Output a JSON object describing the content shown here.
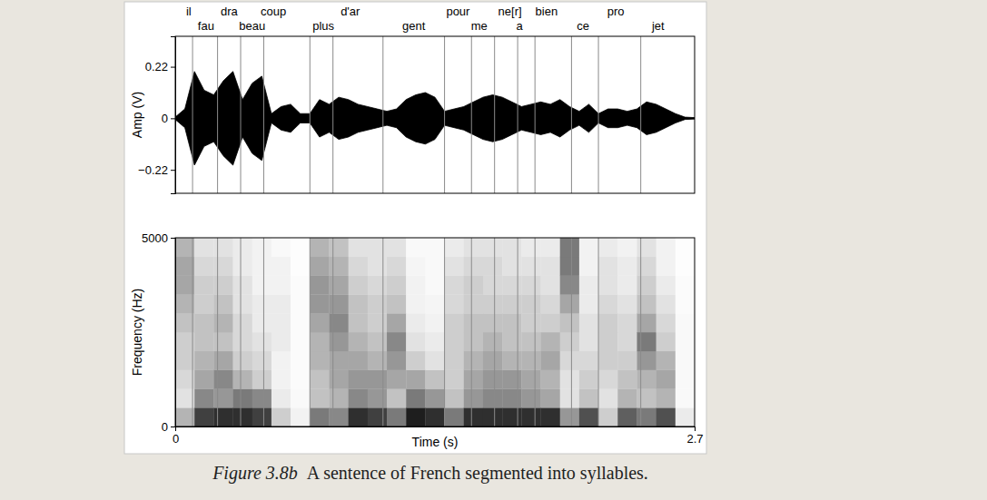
{
  "chart_data": [
    {
      "type": "area",
      "ylabel": "Amp (V)",
      "color": "#000000",
      "x": [
        0,
        0.05,
        0.1,
        0.15,
        0.2,
        0.25,
        0.3,
        0.35,
        0.4,
        0.45,
        0.5,
        0.55,
        0.6,
        0.65,
        0.7,
        0.75,
        0.8,
        0.85,
        0.9,
        0.95,
        1,
        1.05,
        1.1,
        1.15,
        1.2,
        1.25,
        1.3,
        1.35,
        1.4,
        1.45,
        1.5,
        1.55,
        1.6,
        1.65,
        1.7,
        1.75,
        1.8,
        1.85,
        1.9,
        1.95,
        2,
        2.05,
        2.1,
        2.15,
        2.2,
        2.25,
        2.3,
        2.35,
        2.4,
        2.45,
        2.5,
        2.55,
        2.6,
        2.65,
        2.7
      ],
      "values": [
        0.005,
        0.04,
        0.2,
        0.12,
        0.1,
        0.16,
        0.2,
        0.08,
        0.15,
        0.18,
        0.02,
        0.05,
        0.06,
        0.02,
        0.02,
        0.08,
        0.06,
        0.09,
        0.08,
        0.06,
        0.05,
        0.04,
        0.03,
        0.04,
        0.08,
        0.1,
        0.11,
        0.09,
        0.03,
        0.04,
        0.05,
        0.07,
        0.09,
        0.1,
        0.09,
        0.07,
        0.05,
        0.06,
        0.07,
        0.06,
        0.08,
        0.05,
        0.03,
        0.06,
        0.02,
        0.04,
        0.04,
        0.03,
        0.04,
        0.07,
        0.06,
        0.04,
        0.02,
        0.005,
        0.003
      ],
      "xlim": [
        0,
        2.7
      ],
      "ylim": [
        -0.32,
        0.35
      ],
      "yticks": [
        0.22,
        0,
        {
          "value": -0.22,
          "label": "−0.22"
        }
      ],
      "tick_labels": "y",
      "syllables": [
        {
          "label": "il",
          "time": 0.07
        },
        {
          "label": "fau",
          "time": 0.16
        },
        {
          "label": "dra",
          "time": 0.28
        },
        {
          "label": "beau",
          "time": 0.4
        },
        {
          "label": "coup",
          "time": 0.51
        },
        {
          "label": "plus",
          "time": 0.77
        },
        {
          "label": "d'ar",
          "time": 0.91
        },
        {
          "label": "gent",
          "time": 1.24
        },
        {
          "label": "pour",
          "time": 1.47
        },
        {
          "label": "me",
          "time": 1.58
        },
        {
          "label": "ne[r]",
          "time": 1.74
        },
        {
          "label": "a",
          "time": 1.79
        },
        {
          "label": "bien",
          "time": 1.93
        },
        {
          "label": "ce",
          "time": 2.12
        },
        {
          "label": "pro",
          "time": 2.29
        },
        {
          "label": "jet",
          "time": 2.51
        }
      ],
      "boundaries": [
        0.09,
        0.22,
        0.34,
        0.46,
        0.7,
        0.82,
        1.08,
        1.4,
        1.54,
        1.66,
        1.78,
        1.87,
        2.06,
        2.2,
        2.42
      ]
    },
    {
      "type": "heatmap",
      "xlabel": "Time (s)",
      "ylabel": "Frequency (Hz)",
      "x_bins": [
        0,
        0.1,
        0.2,
        0.3,
        0.4,
        0.5,
        0.6,
        0.7,
        0.8,
        0.9,
        1,
        1.1,
        1.2,
        1.3,
        1.4,
        1.5,
        1.6,
        1.7,
        1.8,
        1.9,
        2,
        2.1,
        2.2,
        2.3,
        2.4,
        2.5,
        2.6,
        2.7
      ],
      "y_bins": [
        0,
        500,
        1000,
        1500,
        2000,
        2500,
        3000,
        3500,
        4000,
        4500,
        5000
      ],
      "cells": [
        [
          0.4,
          0.2,
          0.25,
          0.3,
          0.3,
          0.35,
          0.4,
          0.45,
          0.45,
          0.4
        ],
        [
          0.8,
          0.55,
          0.45,
          0.4,
          0.35,
          0.35,
          0.3,
          0.3,
          0.25,
          0.2
        ],
        [
          0.85,
          0.5,
          0.55,
          0.45,
          0.35,
          0.4,
          0.35,
          0.3,
          0.25,
          0.2
        ],
        [
          0.85,
          0.6,
          0.4,
          0.3,
          0.25,
          0.25,
          0.2,
          0.2,
          0.15,
          0.15
        ],
        [
          0.8,
          0.55,
          0.3,
          0.25,
          0.2,
          0.15,
          0.15,
          0.1,
          0.1,
          0.1
        ],
        [
          0.3,
          0.15,
          0.1,
          0.1,
          0.15,
          0.15,
          0.15,
          0.1,
          0.1,
          0.05
        ],
        [
          0.1,
          0.05,
          0.03,
          0.03,
          0.03,
          0.03,
          0.03,
          0.03,
          0.02,
          0.02
        ],
        [
          0.6,
          0.35,
          0.35,
          0.4,
          0.4,
          0.45,
          0.5,
          0.5,
          0.45,
          0.4
        ],
        [
          0.55,
          0.4,
          0.45,
          0.45,
          0.5,
          0.55,
          0.5,
          0.45,
          0.4,
          0.35
        ],
        [
          0.85,
          0.55,
          0.5,
          0.45,
          0.4,
          0.35,
          0.35,
          0.3,
          0.25,
          0.2
        ],
        [
          0.8,
          0.5,
          0.5,
          0.4,
          0.35,
          0.3,
          0.3,
          0.25,
          0.2,
          0.2
        ],
        [
          0.6,
          0.35,
          0.45,
          0.5,
          0.55,
          0.45,
          0.35,
          0.3,
          0.25,
          0.2
        ],
        [
          0.9,
          0.6,
          0.45,
          0.3,
          0.2,
          0.15,
          0.1,
          0.1,
          0.08,
          0.05
        ],
        [
          0.85,
          0.5,
          0.35,
          0.2,
          0.15,
          0.1,
          0.08,
          0.05,
          0.05,
          0.05
        ],
        [
          0.6,
          0.35,
          0.3,
          0.3,
          0.3,
          0.3,
          0.25,
          0.25,
          0.2,
          0.15
        ],
        [
          0.85,
          0.5,
          0.45,
          0.4,
          0.35,
          0.35,
          0.3,
          0.3,
          0.25,
          0.2
        ],
        [
          0.85,
          0.55,
          0.5,
          0.45,
          0.4,
          0.35,
          0.3,
          0.25,
          0.25,
          0.2
        ],
        [
          0.85,
          0.55,
          0.5,
          0.4,
          0.35,
          0.35,
          0.3,
          0.25,
          0.2,
          0.2
        ],
        [
          0.85,
          0.5,
          0.45,
          0.4,
          0.35,
          0.3,
          0.3,
          0.25,
          0.2,
          0.15
        ],
        [
          0.85,
          0.45,
          0.4,
          0.45,
          0.4,
          0.3,
          0.25,
          0.2,
          0.2,
          0.15
        ],
        [
          0.5,
          0.2,
          0.2,
          0.25,
          0.3,
          0.35,
          0.45,
          0.55,
          0.6,
          0.6
        ],
        [
          0.75,
          0.35,
          0.3,
          0.25,
          0.2,
          0.2,
          0.15,
          0.15,
          0.1,
          0.1
        ],
        [
          0.3,
          0.2,
          0.25,
          0.3,
          0.3,
          0.3,
          0.25,
          0.2,
          0.2,
          0.15
        ],
        [
          0.7,
          0.4,
          0.35,
          0.3,
          0.25,
          0.25,
          0.2,
          0.15,
          0.15,
          0.1
        ],
        [
          0.6,
          0.35,
          0.4,
          0.5,
          0.6,
          0.45,
          0.35,
          0.3,
          0.25,
          0.2
        ],
        [
          0.75,
          0.4,
          0.45,
          0.4,
          0.3,
          0.25,
          0.2,
          0.15,
          0.1,
          0.1
        ],
        [
          0.15,
          0.05,
          0.05,
          0.05,
          0.05,
          0.05,
          0.03,
          0.03,
          0.02,
          0.02
        ]
      ],
      "xlim": [
        0,
        2.7
      ],
      "ylim": [
        0,
        5000
      ],
      "xticks": [
        0,
        2.7
      ],
      "yticks": [
        0,
        5000
      ]
    }
  ],
  "caption": {
    "label": "Figure 3.8b",
    "text": "A sentence of French segmented into syllables."
  }
}
